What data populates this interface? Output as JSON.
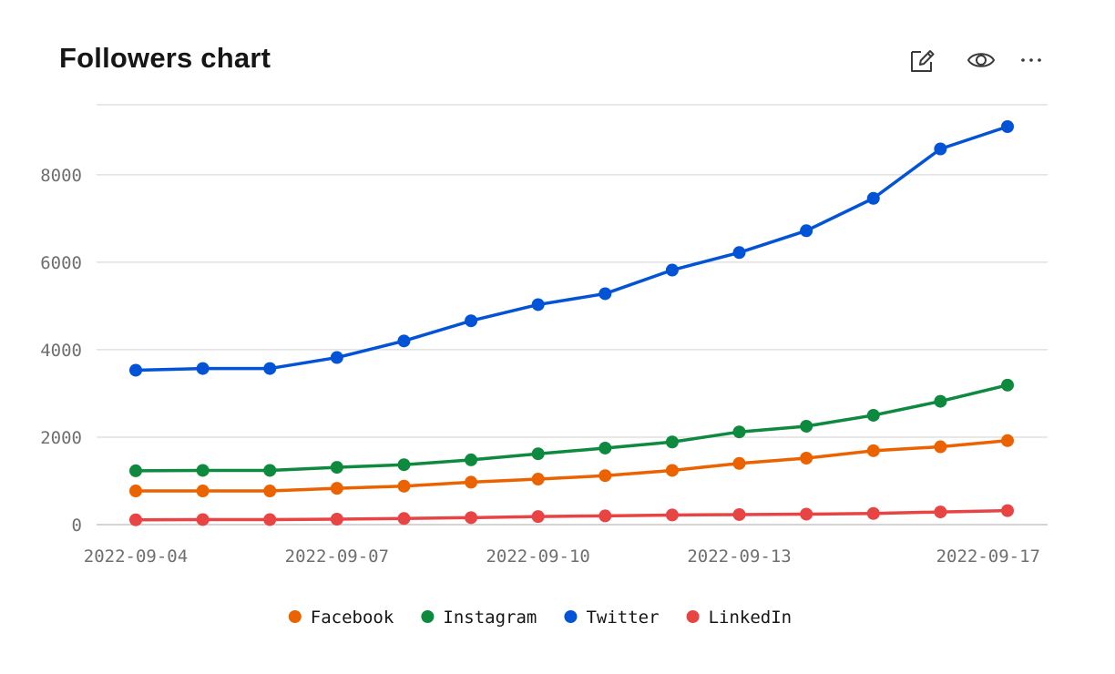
{
  "header": {
    "title": "Followers chart"
  },
  "toolbar": {
    "edit_icon": "edit-icon",
    "view_icon": "eye-icon",
    "more_icon": "overflow-menu-icon"
  },
  "chart_data": {
    "type": "line",
    "title": "Followers chart",
    "xlabel": "",
    "ylabel": "",
    "x": [
      "2022-09-04",
      "2022-09-05",
      "2022-09-06",
      "2022-09-07",
      "2022-09-08",
      "2022-09-09",
      "2022-09-10",
      "2022-09-11",
      "2022-09-12",
      "2022-09-13",
      "2022-09-14",
      "2022-09-15",
      "2022-09-16",
      "2022-09-17"
    ],
    "x_ticks": [
      "2022-09-04",
      "2022-09-07",
      "2022-09-10",
      "2022-09-13",
      "2022-09-17"
    ],
    "y_ticks": [
      0,
      2000,
      4000,
      6000,
      8000
    ],
    "ylim": [
      0,
      9600
    ],
    "grid": true,
    "legend_position": "bottom-center",
    "series": [
      {
        "name": "Facebook",
        "color": "#eb6200",
        "values": [
          770,
          770,
          770,
          830,
          880,
          970,
          1040,
          1120,
          1240,
          1400,
          1520,
          1690,
          1780,
          1920
        ]
      },
      {
        "name": "Instagram",
        "color": "#0e8a3e",
        "values": [
          1230,
          1240,
          1240,
          1310,
          1370,
          1480,
          1620,
          1750,
          1890,
          2120,
          2250,
          2500,
          2820,
          3190
        ]
      },
      {
        "name": "Twitter",
        "color": "#0353d6",
        "values": [
          3530,
          3570,
          3570,
          3820,
          4200,
          4660,
          5030,
          5280,
          5820,
          6220,
          6720,
          7460,
          8590,
          9100
        ]
      },
      {
        "name": "LinkedIn",
        "color": "#e84444",
        "values": [
          110,
          115,
          115,
          125,
          140,
          160,
          185,
          200,
          220,
          230,
          240,
          255,
          290,
          320
        ]
      }
    ]
  }
}
